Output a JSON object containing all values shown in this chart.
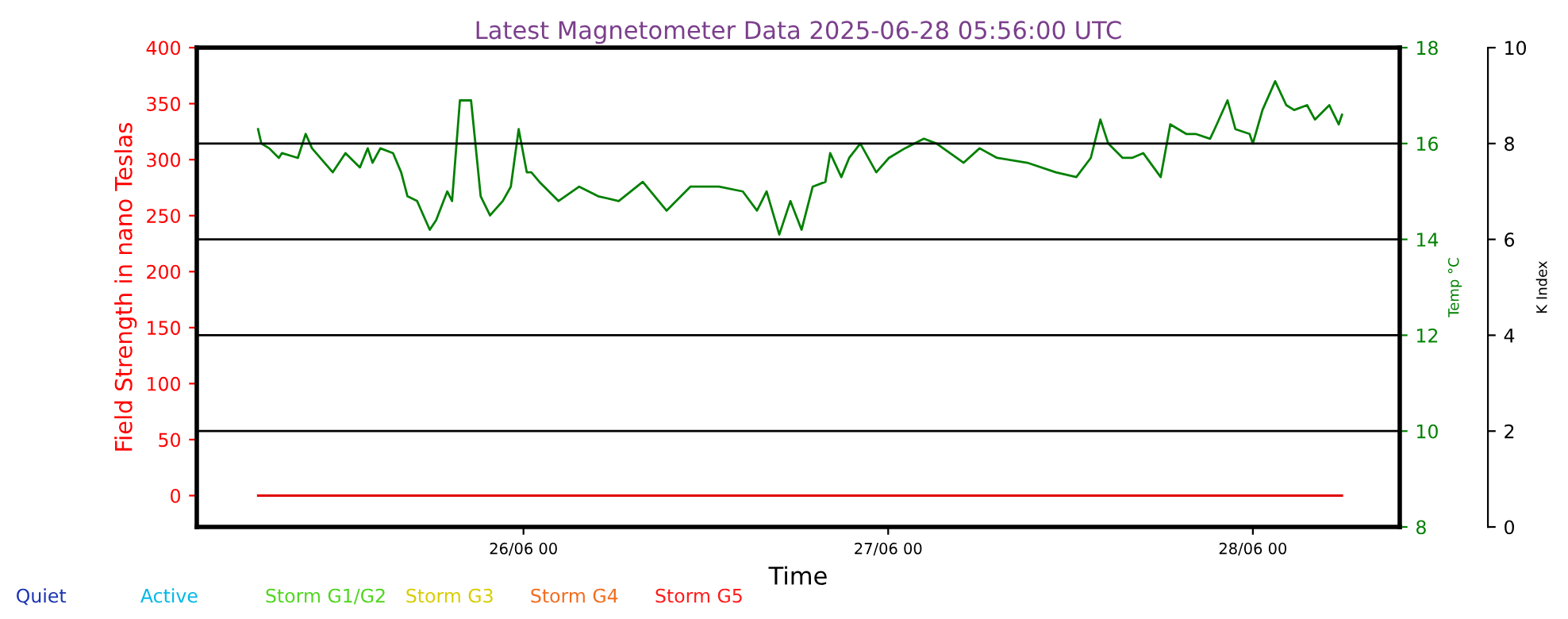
{
  "chart_data": {
    "type": "line",
    "title": "Latest Magnetometer Data 2025-06-28 05:56:00 UTC",
    "xlabel": "Time",
    "ylabel": "Field Strength in nano Teslas",
    "y2label": "Temp °C",
    "y3label": "K Index",
    "xlim": [
      "2025-06-25T02:30",
      "2025-06-28T09:40"
    ],
    "xticks": [
      {
        "value": "2025-06-26T00:00",
        "label": "26/06 00"
      },
      {
        "value": "2025-06-27T00:00",
        "label": "27/06 00"
      },
      {
        "value": "2025-06-28T00:00",
        "label": "28/06 00"
      }
    ],
    "ylim": [
      -28,
      400
    ],
    "yticks": [
      0,
      50,
      100,
      150,
      200,
      250,
      300,
      350,
      400
    ],
    "y2lim": [
      8,
      18
    ],
    "y2ticks": [
      8,
      10,
      12,
      14,
      16,
      18
    ],
    "y3lim": [
      0,
      10
    ],
    "y3ticks": [
      0,
      2,
      4,
      6,
      8,
      10
    ],
    "grid": "y3",
    "series": [
      {
        "color": "#e00000",
        "x": [
          "2025-06-25T06:32",
          "2025-06-26T12:00",
          "2025-06-28T05:52"
        ],
        "values": [
          0,
          0,
          0
        ]
      },
      {
        "axis": "y2",
        "color": "#008000",
        "x": [
          "2025-06-25T06:32",
          "2025-06-25T06:45",
          "2025-06-25T07:16",
          "2025-06-25T07:54",
          "2025-06-25T08:06",
          "2025-06-25T09:09",
          "2025-06-25T09:40",
          "2025-06-25T10:05",
          "2025-06-25T11:27",
          "2025-06-25T12:17",
          "2025-06-25T13:14",
          "2025-06-25T13:45",
          "2025-06-25T14:04",
          "2025-06-25T14:35",
          "2025-06-25T15:25",
          "2025-06-25T15:57",
          "2025-06-25T16:22",
          "2025-06-25T17:00",
          "2025-06-25T17:25",
          "2025-06-25T17:50",
          "2025-06-25T18:15",
          "2025-06-25T18:59",
          "2025-06-25T19:18",
          "2025-06-25T19:49",
          "2025-06-25T20:33",
          "2025-06-25T21:11",
          "2025-06-25T21:48",
          "2025-06-25T22:38",
          "2025-06-25T23:10",
          "2025-06-25T23:41",
          "2025-06-26T00:13",
          "2025-06-26T00:31",
          "2025-06-26T01:03",
          "2025-06-26T02:18",
          "2025-06-26T03:40",
          "2025-06-26T04:55",
          "2025-06-26T06:16",
          "2025-06-26T07:51",
          "2025-06-26T09:25",
          "2025-06-26T10:59",
          "2025-06-26T12:02",
          "2025-06-26T12:52",
          "2025-06-26T14:26",
          "2025-06-26T15:22",
          "2025-06-26T16:00",
          "2025-06-26T16:50",
          "2025-06-26T17:34",
          "2025-06-26T18:18",
          "2025-06-26T19:02",
          "2025-06-26T19:52",
          "2025-06-26T20:11",
          "2025-06-26T20:55",
          "2025-06-26T21:26",
          "2025-06-26T22:10",
          "2025-06-26T23:13",
          "2025-06-27T00:03",
          "2025-06-27T01:06",
          "2025-06-27T02:21",
          "2025-06-27T03:11",
          "2025-06-27T04:58",
          "2025-06-27T06:01",
          "2025-06-27T07:10",
          "2025-06-27T09:09",
          "2025-06-27T11:02",
          "2025-06-27T12:23",
          "2025-06-27T13:20",
          "2025-06-27T13:58",
          "2025-06-27T14:29",
          "2025-06-27T15:26",
          "2025-06-27T16:03",
          "2025-06-27T16:47",
          "2025-06-27T17:56",
          "2025-06-27T18:34",
          "2025-06-27T19:37",
          "2025-06-27T20:14",
          "2025-06-27T21:11",
          "2025-06-27T21:29",
          "2025-06-27T22:20",
          "2025-06-27T22:51",
          "2025-06-27T23:47",
          "2025-06-28T00:00",
          "2025-06-28T00:38",
          "2025-06-28T01:28",
          "2025-06-28T02:12",
          "2025-06-28T02:43",
          "2025-06-28T03:34",
          "2025-06-28T04:05",
          "2025-06-28T05:02",
          "2025-06-28T05:39",
          "2025-06-28T05:52"
        ],
        "values": [
          16.3,
          16.0,
          15.9,
          15.7,
          15.8,
          15.7,
          16.2,
          15.9,
          15.4,
          15.8,
          15.5,
          15.9,
          15.6,
          15.9,
          15.8,
          15.4,
          14.9,
          14.8,
          14.5,
          14.2,
          14.4,
          15.0,
          14.8,
          16.9,
          16.9,
          14.9,
          14.5,
          14.8,
          15.1,
          16.3,
          15.4,
          15.4,
          15.2,
          14.8,
          15.1,
          14.9,
          14.8,
          15.2,
          14.6,
          15.1,
          15.1,
          15.1,
          15.0,
          14.6,
          15.0,
          14.1,
          14.8,
          14.2,
          15.1,
          15.2,
          15.8,
          15.3,
          15.7,
          16.0,
          15.4,
          15.7,
          15.9,
          16.1,
          16.0,
          15.6,
          15.9,
          15.7,
          15.6,
          15.4,
          15.3,
          15.7,
          16.5,
          16.0,
          15.7,
          15.7,
          15.8,
          15.3,
          16.4,
          16.2,
          16.2,
          16.1,
          16.3,
          16.9,
          16.3,
          16.2,
          16.0,
          16.7,
          17.3,
          16.8,
          16.7,
          16.8,
          16.5,
          16.8,
          16.4,
          16.6
        ]
      },
      {
        "name": "Quiet",
        "color": "#1a33b3"
      },
      {
        "name": "Active",
        "color": "#00b8e6"
      },
      {
        "name": "Storm G1/G2",
        "color": "#4fd61f"
      },
      {
        "name": "Storm G3",
        "color": "#d9cc00"
      },
      {
        "name": "Storm G4",
        "color": "#f36b1c"
      },
      {
        "name": "Storm G5",
        "color": "#ff1a1a"
      }
    ]
  }
}
